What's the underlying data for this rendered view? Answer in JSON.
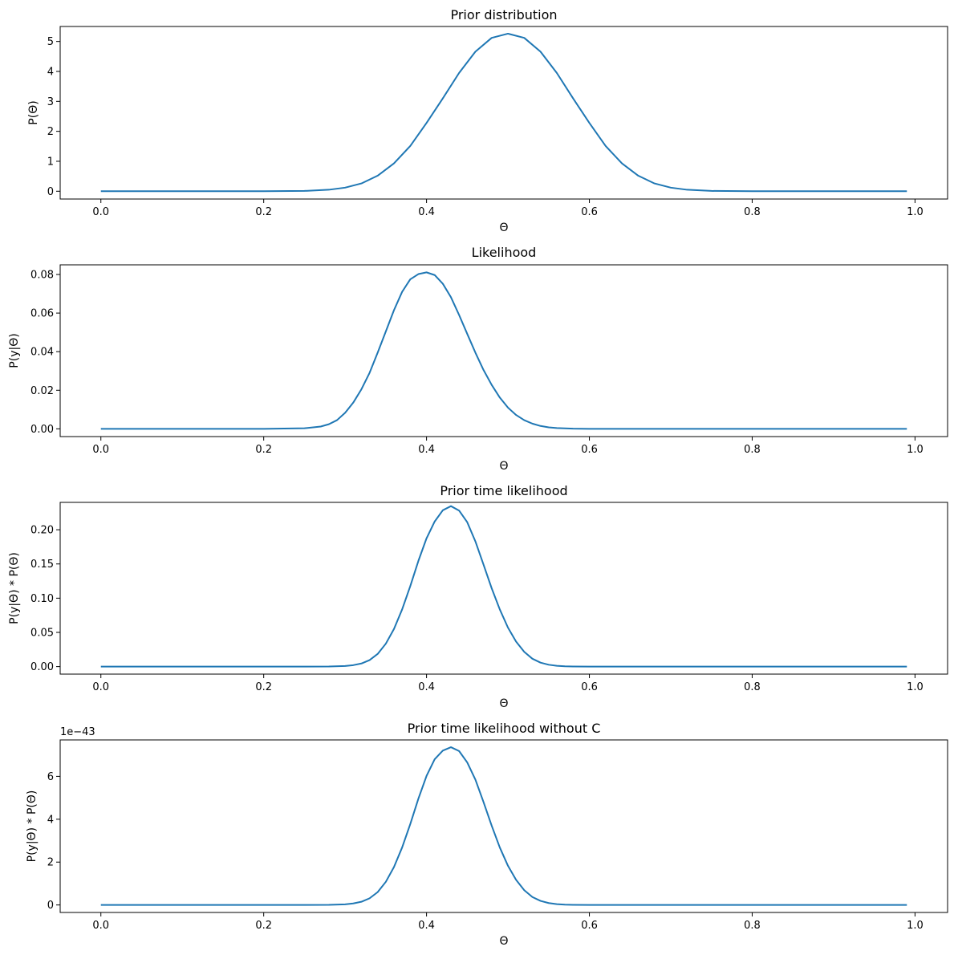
{
  "chart_data": [
    {
      "type": "line",
      "title": "Prior distribution",
      "xlabel": "Θ",
      "ylabel": "P(Θ)",
      "xlim": [
        -0.05,
        1.04
      ],
      "ylim": [
        -0.26,
        5.5
      ],
      "xticks": [
        0.0,
        0.2,
        0.4,
        0.6,
        0.8,
        1.0
      ],
      "xtick_labels": [
        "0.0",
        "0.2",
        "0.4",
        "0.6",
        "0.8",
        "1.0"
      ],
      "yticks": [
        0,
        1,
        2,
        3,
        4,
        5
      ],
      "ytick_labels": [
        "0",
        "1",
        "2",
        "3",
        "4",
        "5"
      ],
      "offset_label": "",
      "color": "#1f77b4",
      "series": [
        {
          "x": [
            0.0,
            0.05,
            0.1,
            0.15,
            0.2,
            0.25,
            0.28,
            0.3,
            0.32,
            0.34,
            0.36,
            0.38,
            0.4,
            0.42,
            0.44,
            0.46,
            0.48,
            0.5,
            0.52,
            0.54,
            0.56,
            0.58,
            0.6,
            0.62,
            0.64,
            0.66,
            0.68,
            0.7,
            0.72,
            0.75,
            0.8,
            0.85,
            0.9,
            0.95,
            0.99
          ],
          "y": [
            0,
            0,
            0,
            0,
            0,
            0.01,
            0.05,
            0.12,
            0.26,
            0.52,
            0.93,
            1.51,
            2.28,
            3.1,
            3.95,
            4.66,
            5.12,
            5.26,
            5.12,
            4.66,
            3.95,
            3.1,
            2.28,
            1.51,
            0.93,
            0.52,
            0.26,
            0.12,
            0.05,
            0.01,
            0,
            0,
            0,
            0,
            0
          ]
        }
      ]
    },
    {
      "type": "line",
      "title": "Likelihood",
      "xlabel": "Θ",
      "ylabel": "P(y|Θ)",
      "xlim": [
        -0.05,
        1.04
      ],
      "ylim": [
        -0.004,
        0.085
      ],
      "xticks": [
        0.0,
        0.2,
        0.4,
        0.6,
        0.8,
        1.0
      ],
      "xtick_labels": [
        "0.0",
        "0.2",
        "0.4",
        "0.6",
        "0.8",
        "1.0"
      ],
      "yticks": [
        0.0,
        0.02,
        0.04,
        0.06,
        0.08
      ],
      "ytick_labels": [
        "0.00",
        "0.02",
        "0.04",
        "0.06",
        "0.08"
      ],
      "offset_label": "",
      "color": "#1f77b4",
      "series": [
        {
          "x": [
            0.0,
            0.05,
            0.1,
            0.15,
            0.2,
            0.25,
            0.27,
            0.28,
            0.29,
            0.3,
            0.31,
            0.32,
            0.33,
            0.34,
            0.35,
            0.36,
            0.37,
            0.38,
            0.39,
            0.4,
            0.41,
            0.42,
            0.43,
            0.44,
            0.45,
            0.46,
            0.47,
            0.48,
            0.49,
            0.5,
            0.51,
            0.52,
            0.53,
            0.54,
            0.55,
            0.56,
            0.58,
            0.6,
            0.65,
            0.7,
            0.8,
            0.9,
            0.99
          ],
          "y": [
            0,
            0,
            0,
            0,
            0,
            0.0003,
            0.0012,
            0.0024,
            0.0045,
            0.0083,
            0.0136,
            0.0205,
            0.029,
            0.0395,
            0.0505,
            0.0615,
            0.071,
            0.0775,
            0.0802,
            0.0811,
            0.0797,
            0.0752,
            0.0682,
            0.059,
            0.0492,
            0.0395,
            0.0305,
            0.0228,
            0.0162,
            0.011,
            0.0072,
            0.0045,
            0.0027,
            0.0015,
            0.0008,
            0.0004,
            0.0001,
            0,
            0,
            0,
            0,
            0,
            0
          ]
        }
      ]
    },
    {
      "type": "line",
      "title": "Prior time likelihood",
      "xlabel": "Θ",
      "ylabel": "P(y|Θ) * P(Θ)",
      "xlim": [
        -0.05,
        1.04
      ],
      "ylim": [
        -0.011,
        0.24
      ],
      "xticks": [
        0.0,
        0.2,
        0.4,
        0.6,
        0.8,
        1.0
      ],
      "xtick_labels": [
        "0.0",
        "0.2",
        "0.4",
        "0.6",
        "0.8",
        "1.0"
      ],
      "yticks": [
        0.0,
        0.05,
        0.1,
        0.15,
        0.2
      ],
      "ytick_labels": [
        "0.00",
        "0.05",
        "0.10",
        "0.15",
        "0.20"
      ],
      "offset_label": "",
      "color": "#1f77b4",
      "series": [
        {
          "x": [
            0.0,
            0.1,
            0.2,
            0.25,
            0.28,
            0.3,
            0.31,
            0.32,
            0.33,
            0.34,
            0.35,
            0.36,
            0.37,
            0.38,
            0.39,
            0.4,
            0.41,
            0.42,
            0.43,
            0.44,
            0.45,
            0.46,
            0.47,
            0.48,
            0.49,
            0.5,
            0.51,
            0.52,
            0.53,
            0.54,
            0.55,
            0.56,
            0.57,
            0.58,
            0.6,
            0.65,
            0.7,
            0.8,
            0.9,
            0.99
          ],
          "y": [
            0,
            0,
            0,
            0,
            0.0002,
            0.0009,
            0.0021,
            0.0045,
            0.0095,
            0.0185,
            0.0335,
            0.055,
            0.0835,
            0.1175,
            0.1545,
            0.1875,
            0.212,
            0.2285,
            0.2345,
            0.228,
            0.211,
            0.183,
            0.149,
            0.1145,
            0.0835,
            0.057,
            0.0365,
            0.0215,
            0.0115,
            0.0058,
            0.0027,
            0.0012,
            0.0005,
            0.0002,
            0,
            0,
            0,
            0,
            0,
            0
          ]
        }
      ]
    },
    {
      "type": "line",
      "title": "Prior time likelihood without C",
      "xlabel": "Θ",
      "ylabel": "P(y|Θ) * P(Θ)",
      "xlim": [
        -0.05,
        1.04
      ],
      "ylim": [
        -0.35,
        7.7
      ],
      "xticks": [
        0.0,
        0.2,
        0.4,
        0.6,
        0.8,
        1.0
      ],
      "xtick_labels": [
        "0.0",
        "0.2",
        "0.4",
        "0.6",
        "0.8",
        "1.0"
      ],
      "yticks": [
        0,
        2,
        4,
        6
      ],
      "ytick_labels": [
        "0",
        "2",
        "4",
        "6"
      ],
      "offset_label": "1e−43",
      "color": "#1f77b4",
      "series": [
        {
          "x": [
            0.0,
            0.1,
            0.2,
            0.25,
            0.28,
            0.3,
            0.31,
            0.32,
            0.33,
            0.34,
            0.35,
            0.36,
            0.37,
            0.38,
            0.39,
            0.4,
            0.41,
            0.42,
            0.43,
            0.44,
            0.45,
            0.46,
            0.47,
            0.48,
            0.49,
            0.5,
            0.51,
            0.52,
            0.53,
            0.54,
            0.55,
            0.56,
            0.57,
            0.58,
            0.6,
            0.65,
            0.7,
            0.8,
            0.9,
            0.99
          ],
          "y": [
            0,
            0,
            0,
            0,
            0.005,
            0.03,
            0.07,
            0.15,
            0.31,
            0.6,
            1.08,
            1.77,
            2.68,
            3.77,
            4.96,
            6.02,
            6.8,
            7.2,
            7.36,
            7.18,
            6.65,
            5.85,
            4.8,
            3.7,
            2.68,
            1.83,
            1.17,
            0.69,
            0.37,
            0.19,
            0.09,
            0.04,
            0.015,
            0.005,
            0,
            0,
            0,
            0,
            0,
            0
          ]
        }
      ]
    }
  ]
}
